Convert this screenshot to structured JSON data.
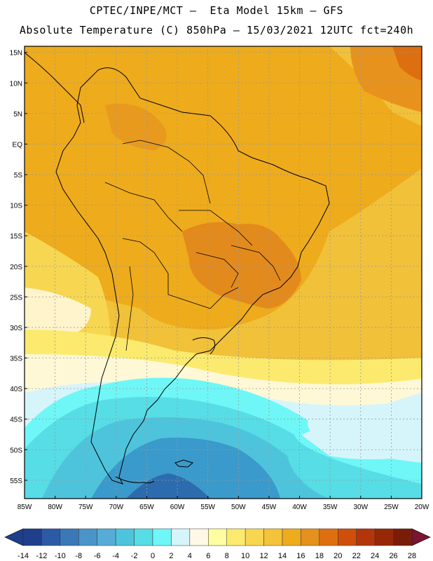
{
  "header": {
    "line1": "CPTEC/INPE/MCT –  Eta Model 15km – GFS",
    "line2": "Absolute Temperature (C) 850hPa – 15/03/2021 12UTC fct=240h"
  },
  "map": {
    "lat_labels": [
      "15N",
      "10N",
      "5N",
      "EQ",
      "5S",
      "10S",
      "15S",
      "20S",
      "25S",
      "30S",
      "35S",
      "40S",
      "45S",
      "50S",
      "55S"
    ],
    "lon_labels": [
      "85W",
      "80W",
      "75W",
      "70W",
      "65W",
      "60W",
      "55W",
      "50W",
      "45W",
      "40W",
      "35W",
      "30W",
      "25W",
      "20W"
    ],
    "lon_range": [
      -85,
      -20
    ],
    "lat_range": [
      -58,
      16
    ],
    "grid": true
  },
  "colorbar": {
    "labels": [
      "-14",
      "-12",
      "-10",
      "-8",
      "-6",
      "-4",
      "-2",
      "0",
      "2",
      "4",
      "6",
      "8",
      "10",
      "12",
      "14",
      "16",
      "18",
      "20",
      "22",
      "24",
      "26",
      "28"
    ],
    "colors": [
      "#1f3e8c",
      "#2c5aa6",
      "#3a78b8",
      "#4a94c8",
      "#55acd6",
      "#4ec4dc",
      "#56dde6",
      "#6ff7f7",
      "#d6f5fb",
      "#fff8e4",
      "#fefea0",
      "#fbea6e",
      "#f7d752",
      "#f3c33a",
      "#eeab1c",
      "#e6901e",
      "#de6f10",
      "#cf4e0c",
      "#b3360a",
      "#962808",
      "#7a1d08"
    ]
  },
  "chart_data": {
    "type": "heatmap",
    "title": "Absolute Temperature (C) 850hPa – 15/03/2021 12UTC fct=240h",
    "xlim": [
      -85,
      -20
    ],
    "ylim": [
      -58,
      16
    ],
    "value_range": [
      -14,
      28
    ],
    "unit": "C"
  }
}
